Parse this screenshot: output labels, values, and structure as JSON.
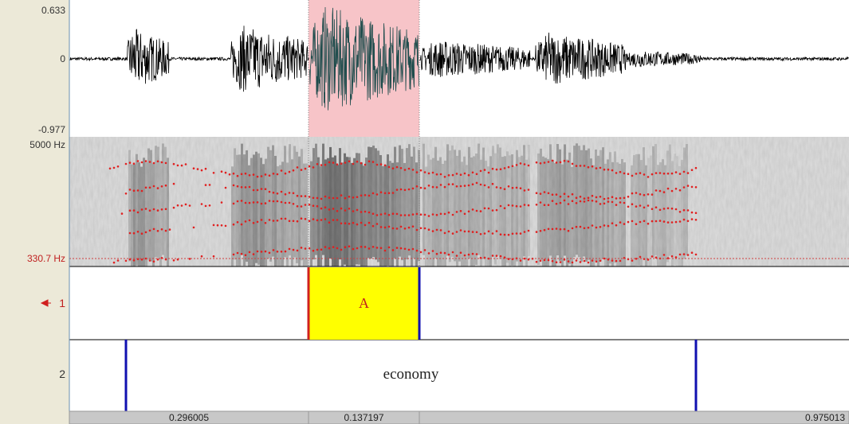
{
  "waveform": {
    "max_label": "0.633",
    "zero_label": "0",
    "min_label": "-0.977"
  },
  "spectrogram": {
    "top_label": "5000 Hz",
    "bottom_label": "330.7 Hz"
  },
  "tiers": [
    {
      "name": "1",
      "intervals": [
        "A"
      ]
    },
    {
      "name": "2",
      "intervals": [
        "economy"
      ]
    }
  ],
  "durations": [
    "0.296005",
    "0.137197",
    "0.975013"
  ]
}
